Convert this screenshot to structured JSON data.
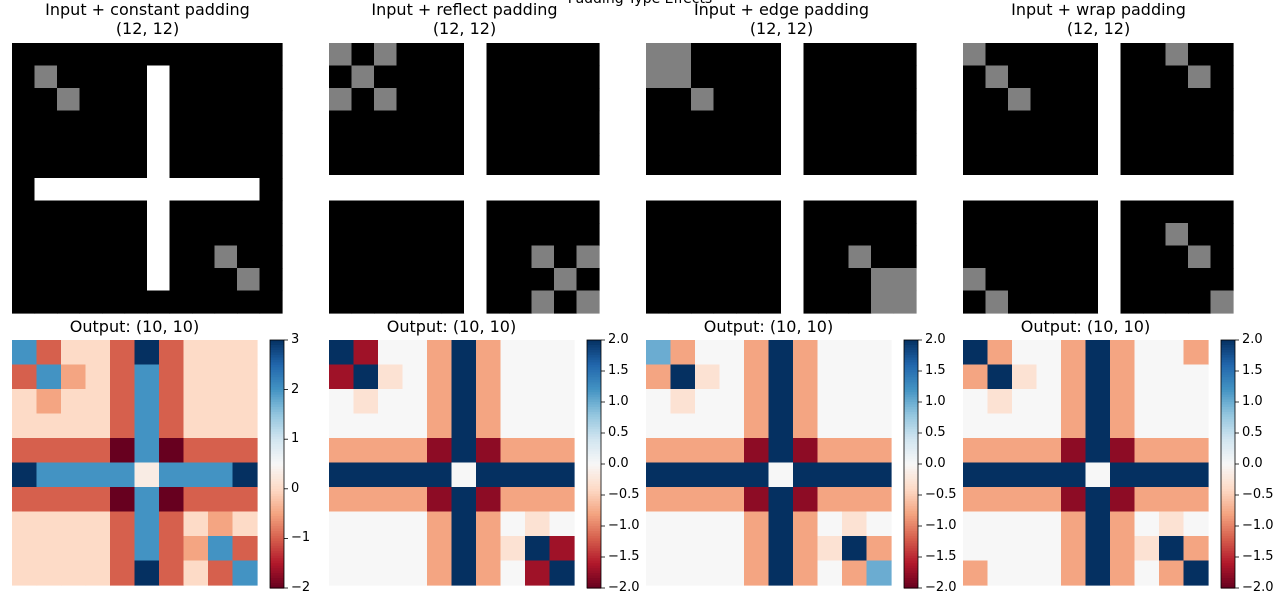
{
  "figure": {
    "suptitle": "Padding Type Effects"
  },
  "chart_data": [
    {
      "type": "heatmap",
      "title": "Input + constant padding",
      "subtitle": "(12, 12)",
      "colormap": "gray",
      "vmin": 0,
      "vmax": 1,
      "values": [
        [
          0,
          0,
          0,
          0,
          0,
          0,
          0,
          0,
          0,
          0,
          0,
          0
        ],
        [
          0,
          0.5,
          0,
          0,
          0,
          0,
          1,
          0,
          0,
          0,
          0,
          0
        ],
        [
          0,
          0,
          0.5,
          0,
          0,
          0,
          1,
          0,
          0,
          0,
          0,
          0
        ],
        [
          0,
          0,
          0,
          0,
          0,
          0,
          1,
          0,
          0,
          0,
          0,
          0
        ],
        [
          0,
          0,
          0,
          0,
          0,
          0,
          1,
          0,
          0,
          0,
          0,
          0
        ],
        [
          0,
          0,
          0,
          0,
          0,
          0,
          1,
          0,
          0,
          0,
          0,
          0
        ],
        [
          0,
          1,
          1,
          1,
          1,
          1,
          1,
          1,
          1,
          1,
          1,
          0
        ],
        [
          0,
          0,
          0,
          0,
          0,
          0,
          1,
          0,
          0,
          0,
          0,
          0
        ],
        [
          0,
          0,
          0,
          0,
          0,
          0,
          1,
          0,
          0,
          0,
          0,
          0
        ],
        [
          0,
          0,
          0,
          0,
          0,
          0,
          1,
          0,
          0,
          0.5,
          0,
          0
        ],
        [
          0,
          0,
          0,
          0,
          0,
          0,
          1,
          0,
          0,
          0,
          0.5,
          0
        ],
        [
          0,
          0,
          0,
          0,
          0,
          0,
          0,
          0,
          0,
          0,
          0,
          0
        ]
      ]
    },
    {
      "type": "heatmap",
      "title": "Input + reflect padding",
      "subtitle": "(12, 12)",
      "colormap": "gray",
      "vmin": 0,
      "vmax": 1,
      "values": [
        [
          0.5,
          0,
          0.5,
          0,
          0,
          0,
          1,
          0,
          0,
          0,
          0,
          0
        ],
        [
          0,
          0.5,
          0,
          0,
          0,
          0,
          1,
          0,
          0,
          0,
          0,
          0
        ],
        [
          0.5,
          0,
          0.5,
          0,
          0,
          0,
          1,
          0,
          0,
          0,
          0,
          0
        ],
        [
          0,
          0,
          0,
          0,
          0,
          0,
          1,
          0,
          0,
          0,
          0,
          0
        ],
        [
          0,
          0,
          0,
          0,
          0,
          0,
          1,
          0,
          0,
          0,
          0,
          0
        ],
        [
          0,
          0,
          0,
          0,
          0,
          0,
          1,
          0,
          0,
          0,
          0,
          0
        ],
        [
          1,
          1,
          1,
          1,
          1,
          1,
          1,
          1,
          1,
          1,
          1,
          1
        ],
        [
          0,
          0,
          0,
          0,
          0,
          0,
          1,
          0,
          0,
          0,
          0,
          0
        ],
        [
          0,
          0,
          0,
          0,
          0,
          0,
          1,
          0,
          0,
          0,
          0,
          0
        ],
        [
          0,
          0,
          0,
          0,
          0,
          0,
          1,
          0,
          0,
          0.5,
          0,
          0.5
        ],
        [
          0,
          0,
          0,
          0,
          0,
          0,
          1,
          0,
          0,
          0,
          0.5,
          0
        ],
        [
          0,
          0,
          0,
          0,
          0,
          0,
          1,
          0,
          0,
          0.5,
          0,
          0.5
        ]
      ]
    },
    {
      "type": "heatmap",
      "title": "Input + edge padding",
      "subtitle": "(12, 12)",
      "colormap": "gray",
      "vmin": 0,
      "vmax": 1,
      "values": [
        [
          0.5,
          0.5,
          0,
          0,
          0,
          0,
          1,
          0,
          0,
          0,
          0,
          0
        ],
        [
          0.5,
          0.5,
          0,
          0,
          0,
          0,
          1,
          0,
          0,
          0,
          0,
          0
        ],
        [
          0,
          0,
          0.5,
          0,
          0,
          0,
          1,
          0,
          0,
          0,
          0,
          0
        ],
        [
          0,
          0,
          0,
          0,
          0,
          0,
          1,
          0,
          0,
          0,
          0,
          0
        ],
        [
          0,
          0,
          0,
          0,
          0,
          0,
          1,
          0,
          0,
          0,
          0,
          0
        ],
        [
          0,
          0,
          0,
          0,
          0,
          0,
          1,
          0,
          0,
          0,
          0,
          0
        ],
        [
          1,
          1,
          1,
          1,
          1,
          1,
          1,
          1,
          1,
          1,
          1,
          1
        ],
        [
          0,
          0,
          0,
          0,
          0,
          0,
          1,
          0,
          0,
          0,
          0,
          0
        ],
        [
          0,
          0,
          0,
          0,
          0,
          0,
          1,
          0,
          0,
          0,
          0,
          0
        ],
        [
          0,
          0,
          0,
          0,
          0,
          0,
          1,
          0,
          0,
          0.5,
          0,
          0
        ],
        [
          0,
          0,
          0,
          0,
          0,
          0,
          1,
          0,
          0,
          0,
          0.5,
          0.5
        ],
        [
          0,
          0,
          0,
          0,
          0,
          0,
          1,
          0,
          0,
          0,
          0.5,
          0.5
        ]
      ]
    },
    {
      "type": "heatmap",
      "title": "Input + wrap padding",
      "subtitle": "(12, 12)",
      "colormap": "gray",
      "vmin": 0,
      "vmax": 1,
      "values": [
        [
          0.5,
          0,
          0,
          0,
          0,
          0,
          1,
          0,
          0,
          0.5,
          0,
          0
        ],
        [
          0,
          0.5,
          0,
          0,
          0,
          0,
          1,
          0,
          0,
          0,
          0.5,
          0
        ],
        [
          0,
          0,
          0.5,
          0,
          0,
          0,
          1,
          0,
          0,
          0,
          0,
          0
        ],
        [
          0,
          0,
          0,
          0,
          0,
          0,
          1,
          0,
          0,
          0,
          0,
          0
        ],
        [
          0,
          0,
          0,
          0,
          0,
          0,
          1,
          0,
          0,
          0,
          0,
          0
        ],
        [
          0,
          0,
          0,
          0,
          0,
          0,
          1,
          0,
          0,
          0,
          0,
          0
        ],
        [
          1,
          1,
          1,
          1,
          1,
          1,
          1,
          1,
          1,
          1,
          1,
          1
        ],
        [
          0,
          0,
          0,
          0,
          0,
          0,
          1,
          0,
          0,
          0,
          0,
          0
        ],
        [
          0,
          0,
          0,
          0,
          0,
          0,
          1,
          0,
          0,
          0.5,
          0,
          0
        ],
        [
          0,
          0,
          0,
          0,
          0,
          0,
          1,
          0,
          0,
          0,
          0.5,
          0
        ],
        [
          0.5,
          0,
          0,
          0,
          0,
          0,
          1,
          0,
          0,
          0,
          0,
          0
        ],
        [
          0,
          0.5,
          0,
          0,
          0,
          0,
          1,
          0,
          0,
          0,
          0,
          0.5
        ]
      ]
    },
    {
      "type": "heatmap",
      "title": "Output: (10, 10)",
      "colormap": "RdBu",
      "vmin": -2,
      "vmax": 3,
      "colorbar_ticks": [
        "3",
        "2",
        "1",
        "0",
        "−1",
        "−2"
      ],
      "colorbar_tick_values": [
        3,
        2,
        1,
        0,
        -1,
        -2
      ],
      "values": [
        [
          2,
          -1,
          0,
          0,
          -1,
          3,
          -1,
          0,
          0,
          0
        ],
        [
          -1,
          2,
          -0.5,
          0,
          -1,
          2,
          -1,
          0,
          0,
          0
        ],
        [
          0,
          -0.5,
          0,
          0,
          -1,
          2,
          -1,
          0,
          0,
          0
        ],
        [
          0,
          0,
          0,
          0,
          -1,
          2,
          -1,
          0,
          0,
          0
        ],
        [
          -1,
          -1,
          -1,
          -1,
          -2,
          2,
          -2,
          -1,
          -1,
          -1
        ],
        [
          3,
          2,
          2,
          2,
          2,
          0.3,
          2,
          2,
          2,
          3
        ],
        [
          -1,
          -1,
          -1,
          -1,
          -2,
          2,
          -2,
          -1,
          -1,
          -1
        ],
        [
          0,
          0,
          0,
          0,
          -1,
          2,
          -1,
          0,
          -0.5,
          0
        ],
        [
          0,
          0,
          0,
          0,
          -1,
          2,
          -1,
          -0.5,
          2,
          -1
        ],
        [
          0,
          0,
          0,
          0,
          -1,
          3,
          -1,
          0,
          -1,
          2
        ]
      ]
    },
    {
      "type": "heatmap",
      "title": "Output: (10, 10)",
      "colormap": "RdBu",
      "vmin": -2,
      "vmax": 2,
      "colorbar_ticks": [
        "2.0",
        "1.5",
        "1.0",
        "0.5",
        "0.0",
        "−0.5",
        "−1.0",
        "−1.5",
        "−2.0"
      ],
      "colorbar_tick_values": [
        2,
        1.5,
        1,
        0.5,
        0,
        -0.5,
        -1,
        -1.5,
        -2
      ],
      "values": [
        [
          2,
          -1.7,
          0,
          0,
          -0.8,
          2,
          -0.8,
          0,
          0,
          0
        ],
        [
          -1.7,
          2,
          -0.3,
          0,
          -0.8,
          2,
          -0.8,
          0,
          0,
          0
        ],
        [
          0,
          -0.3,
          0,
          0,
          -0.8,
          2,
          -0.8,
          0,
          0,
          0
        ],
        [
          0,
          0,
          0,
          0,
          -0.8,
          2,
          -0.8,
          0,
          0,
          0
        ],
        [
          -0.8,
          -0.8,
          -0.8,
          -0.8,
          -1.8,
          2,
          -1.8,
          -0.8,
          -0.8,
          -0.8
        ],
        [
          2,
          2,
          2,
          2,
          2,
          0,
          2,
          2,
          2,
          2
        ],
        [
          -0.8,
          -0.8,
          -0.8,
          -0.8,
          -1.8,
          2,
          -1.8,
          -0.8,
          -0.8,
          -0.8
        ],
        [
          0,
          0,
          0,
          0,
          -0.8,
          2,
          -0.8,
          0,
          -0.3,
          0
        ],
        [
          0,
          0,
          0,
          0,
          -0.8,
          2,
          -0.8,
          -0.3,
          2,
          -1.7
        ],
        [
          0,
          0,
          0,
          0,
          -0.8,
          2,
          -0.8,
          0,
          -1.7,
          2
        ]
      ]
    },
    {
      "type": "heatmap",
      "title": "Output: (10, 10)",
      "colormap": "RdBu",
      "vmin": -2,
      "vmax": 2,
      "colorbar_ticks": [
        "2.0",
        "1.5",
        "1.0",
        "0.5",
        "0.0",
        "−0.5",
        "−1.0",
        "−1.5",
        "−2.0"
      ],
      "colorbar_tick_values": [
        2,
        1.5,
        1,
        0.5,
        0,
        -0.5,
        -1,
        -1.5,
        -2
      ],
      "values": [
        [
          1,
          -0.8,
          0,
          0,
          -0.8,
          2,
          -0.8,
          0,
          0,
          0
        ],
        [
          -0.8,
          2,
          -0.3,
          0,
          -0.8,
          2,
          -0.8,
          0,
          0,
          0
        ],
        [
          0,
          -0.3,
          0,
          0,
          -0.8,
          2,
          -0.8,
          0,
          0,
          0
        ],
        [
          0,
          0,
          0,
          0,
          -0.8,
          2,
          -0.8,
          0,
          0,
          0
        ],
        [
          -0.8,
          -0.8,
          -0.8,
          -0.8,
          -1.8,
          2,
          -1.8,
          -0.8,
          -0.8,
          -0.8
        ],
        [
          2,
          2,
          2,
          2,
          2,
          0,
          2,
          2,
          2,
          2
        ],
        [
          -0.8,
          -0.8,
          -0.8,
          -0.8,
          -1.8,
          2,
          -1.8,
          -0.8,
          -0.8,
          -0.8
        ],
        [
          0,
          0,
          0,
          0,
          -0.8,
          2,
          -0.8,
          0,
          -0.3,
          0
        ],
        [
          0,
          0,
          0,
          0,
          -0.8,
          2,
          -0.8,
          -0.3,
          2,
          -0.8
        ],
        [
          0,
          0,
          0,
          0,
          -0.8,
          2,
          -0.8,
          0,
          -0.8,
          1
        ]
      ]
    },
    {
      "type": "heatmap",
      "title": "Output: (10, 10)",
      "colormap": "RdBu",
      "vmin": -2,
      "vmax": 2,
      "colorbar_ticks": [
        "2.0",
        "1.5",
        "1.0",
        "0.5",
        "0.0",
        "−0.5",
        "−1.0",
        "−1.5",
        "−2.0"
      ],
      "colorbar_tick_values": [
        2,
        1.5,
        1,
        0.5,
        0,
        -0.5,
        -1,
        -1.5,
        -2
      ],
      "values": [
        [
          2,
          -0.8,
          0,
          0,
          -0.8,
          2,
          -0.8,
          0,
          0,
          -0.8
        ],
        [
          -0.8,
          2,
          -0.3,
          0,
          -0.8,
          2,
          -0.8,
          0,
          0,
          0
        ],
        [
          0,
          -0.3,
          0,
          0,
          -0.8,
          2,
          -0.8,
          0,
          0,
          0
        ],
        [
          0,
          0,
          0,
          0,
          -0.8,
          2,
          -0.8,
          0,
          0,
          0
        ],
        [
          -0.8,
          -0.8,
          -0.8,
          -0.8,
          -1.8,
          2,
          -1.8,
          -0.8,
          -0.8,
          -0.8
        ],
        [
          2,
          2,
          2,
          2,
          2,
          0,
          2,
          2,
          2,
          2
        ],
        [
          -0.8,
          -0.8,
          -0.8,
          -0.8,
          -1.8,
          2,
          -1.8,
          -0.8,
          -0.8,
          -0.8
        ],
        [
          0,
          0,
          0,
          0,
          -0.8,
          2,
          -0.8,
          0,
          -0.3,
          0
        ],
        [
          0,
          0,
          0,
          0,
          -0.8,
          2,
          -0.8,
          -0.3,
          2,
          -0.8
        ],
        [
          -0.8,
          0,
          0,
          0,
          -0.8,
          2,
          -0.8,
          0,
          -0.8,
          2
        ]
      ]
    }
  ]
}
